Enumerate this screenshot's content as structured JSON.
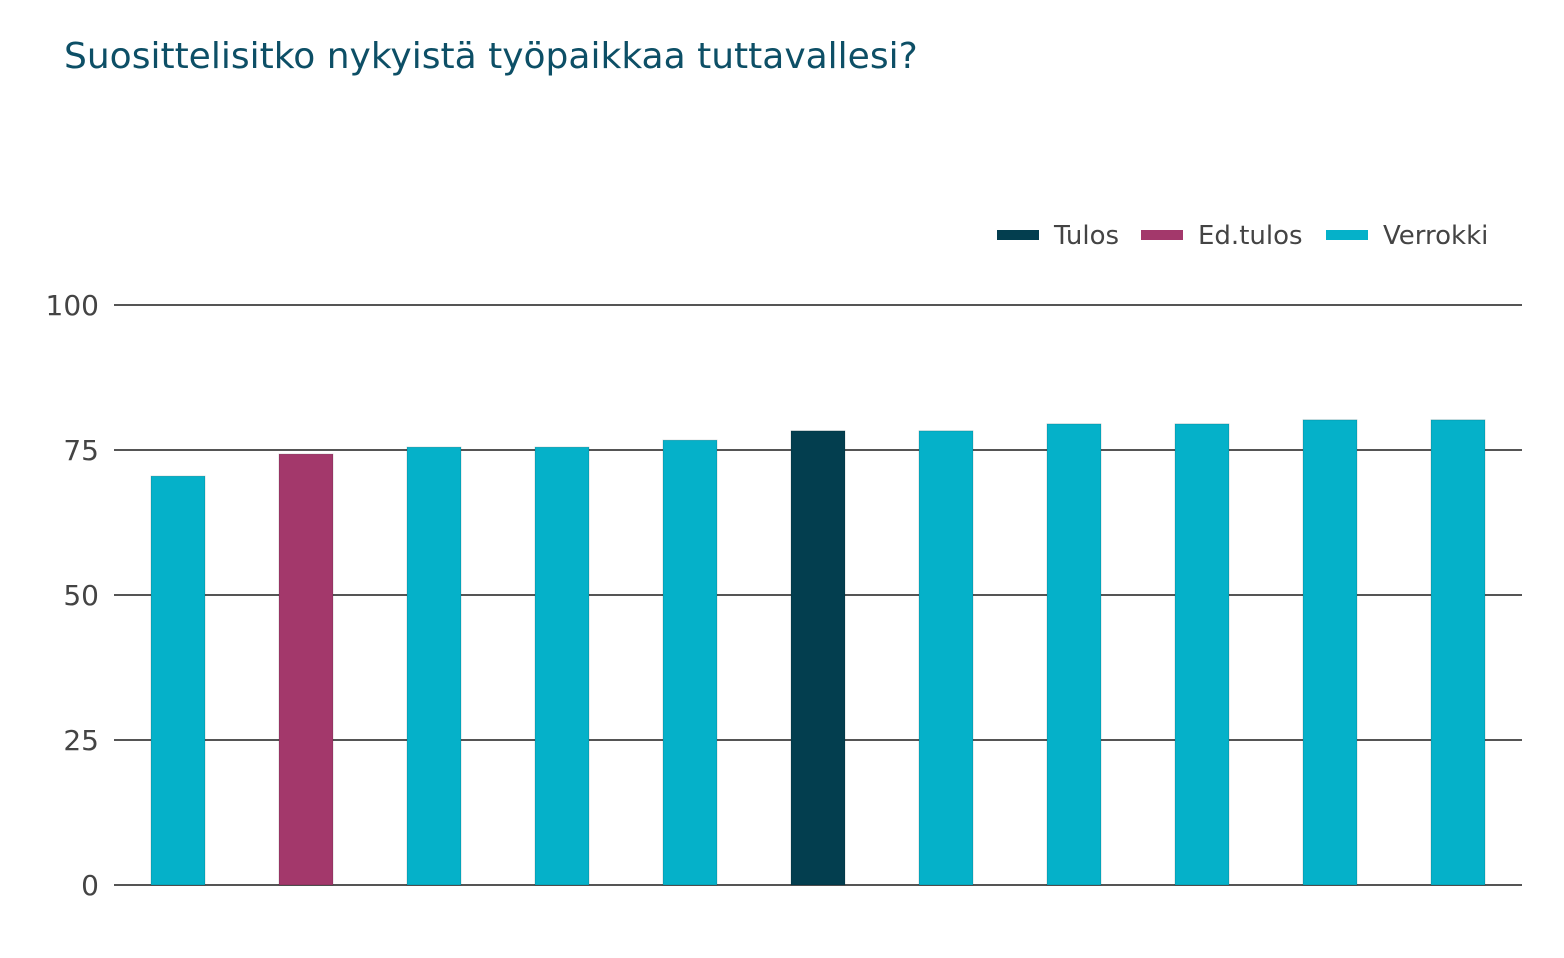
{
  "chart_data": {
    "type": "bar",
    "title": "Suosittelisitko nykyistä työpaikkaa tuttavallesi?",
    "xlabel": "",
    "ylabel": "",
    "ylim": [
      0,
      100
    ],
    "yticks": [
      0,
      25,
      50,
      75,
      100
    ],
    "yticks_labels": [
      "0",
      "25",
      "50",
      "75",
      "100"
    ],
    "grid": true,
    "legend_position": "top-right",
    "legend": [
      {
        "name": "Tulos",
        "color": "#033e4f"
      },
      {
        "name": "Ed.tulos",
        "color": "#a3386b"
      },
      {
        "name": "Verrokki",
        "color": "#05b1c9"
      }
    ],
    "bars": [
      {
        "value": 70.5,
        "series": "Verrokki"
      },
      {
        "value": 74.3,
        "series": "Ed.tulos"
      },
      {
        "value": 75.5,
        "series": "Verrokki"
      },
      {
        "value": 75.5,
        "series": "Verrokki"
      },
      {
        "value": 76.7,
        "series": "Verrokki"
      },
      {
        "value": 78.3,
        "series": "Tulos"
      },
      {
        "value": 78.3,
        "series": "Verrokki"
      },
      {
        "value": 79.5,
        "series": "Verrokki"
      },
      {
        "value": 79.5,
        "series": "Verrokki"
      },
      {
        "value": 80.2,
        "series": "Verrokki"
      },
      {
        "value": 80.2,
        "series": "Verrokki"
      }
    ]
  }
}
